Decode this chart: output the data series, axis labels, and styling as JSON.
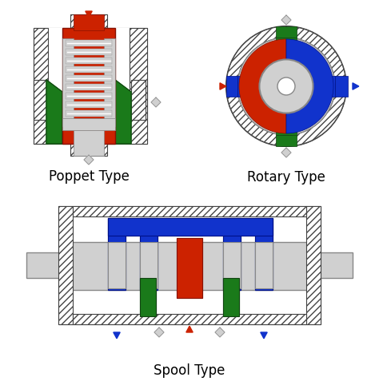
{
  "bg_color": "#ffffff",
  "gray": "#c8c8c8",
  "red": "#cc2200",
  "green": "#1a7a1a",
  "blue": "#1133cc",
  "lgray": "#d0d0d0",
  "poppet_label": "Poppet Type",
  "rotary_label": "Rotary Type",
  "spool_label": "Spool Type",
  "label_fontsize": 12
}
